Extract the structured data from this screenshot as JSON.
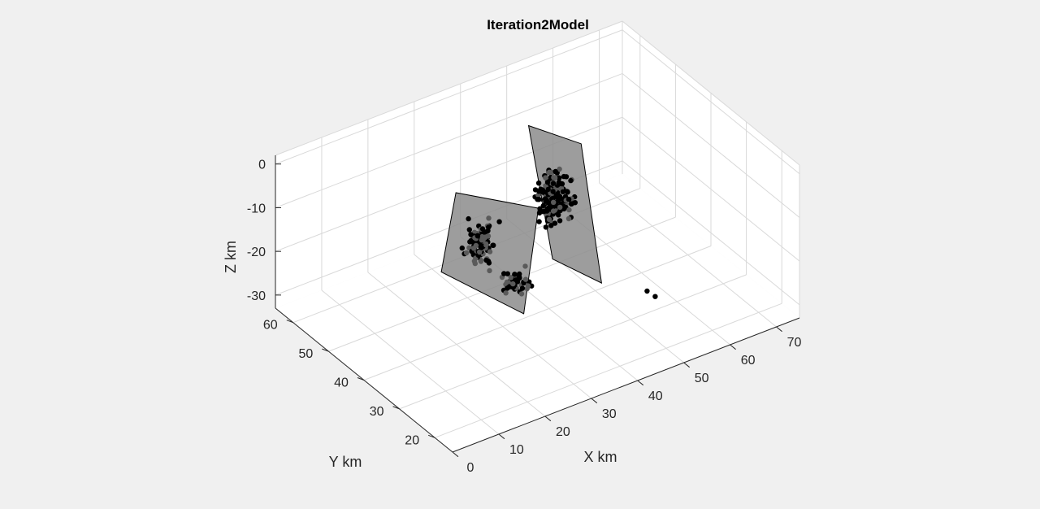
{
  "chart_data": {
    "type": "scatter",
    "title": "Iteration2Model",
    "xlabel": "X km",
    "ylabel": "Y km",
    "zlabel": "Z km",
    "xlim": [
      0,
      75
    ],
    "ylim": [
      15,
      65
    ],
    "zlim": [
      -33,
      2
    ],
    "xticks": [
      0,
      10,
      20,
      30,
      40,
      50,
      60,
      70
    ],
    "yticks": [
      20,
      30,
      40,
      50,
      60
    ],
    "zticks": [
      0,
      -10,
      -20,
      -30
    ],
    "grid": true,
    "view": "3d-azimuth-elevation",
    "colors": {
      "points": "#000000",
      "plane_fill": "#8c8c8c",
      "plane_edge": "#000000",
      "background": "#f0f0f0",
      "axes_bg": "#ffffff"
    },
    "planes": [
      {
        "name": "",
        "corners": [
          [
            26,
            48,
            -6
          ],
          [
            19,
            43,
            -18
          ],
          [
            33,
            38,
            -30
          ],
          [
            40,
            43,
            -12
          ]
        ]
      },
      {
        "name": "",
        "corners": [
          [
            44,
            51,
            0
          ],
          [
            50,
            44,
            -2
          ],
          [
            46,
            33,
            -25
          ],
          [
            40,
            39,
            -21
          ]
        ]
      }
    ],
    "clusters": [
      {
        "center": [
          28,
          44,
          -16
        ],
        "spread": [
          4,
          3,
          7
        ],
        "count": 110
      },
      {
        "center": [
          44,
          44,
          -12
        ],
        "spread": [
          4,
          4,
          8
        ],
        "count": 190
      },
      {
        "center": [
          33,
          40,
          -24
        ],
        "spread": [
          5,
          3,
          3
        ],
        "count": 45
      }
    ],
    "outliers": [
      [
        52,
        28,
        -26
      ],
      [
        53,
        27,
        -27
      ]
    ]
  }
}
